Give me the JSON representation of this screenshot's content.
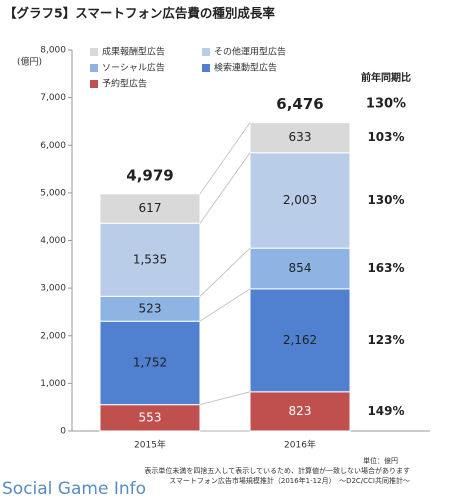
{
  "chart_data": {
    "type": "stacked_bar",
    "title": "【グラフ5】スマートフォン広告費の種別成長率",
    "y_unit": "(億円)",
    "categories": [
      "2015年",
      "2016年"
    ],
    "series": [
      {
        "name": "予約型広告",
        "color": "#c0504d",
        "label_color": "#ffffff",
        "values": [
          553,
          823
        ]
      },
      {
        "name": "検索連動型広告",
        "color": "#4f81d0",
        "label_color": "#222222",
        "values": [
          1752,
          2162
        ],
        "value_labels": [
          "1,752",
          "2,162"
        ]
      },
      {
        "name": "ソーシャル広告",
        "color": "#8eb4e3",
        "label_color": "#222222",
        "values": [
          523,
          854
        ]
      },
      {
        "name": "その他運用型広告",
        "color": "#b9cde8",
        "label_color": "#222222",
        "values": [
          1535,
          2003
        ],
        "value_labels": [
          "1,535",
          "2,003"
        ]
      },
      {
        "name": "成果報酬型広告",
        "color": "#d9d9d9",
        "label_color": "#222222",
        "values": [
          617,
          633
        ]
      }
    ],
    "legend_order": [
      4,
      3,
      2,
      1,
      0
    ],
    "totals": {
      "values": [
        4979,
        6476
      ],
      "value_labels": [
        "4,979",
        "6,476"
      ]
    },
    "yoy": {
      "title": "前年同期比",
      "total": {
        "value": 130,
        "label": "130%"
      },
      "series": [
        {
          "value": 149,
          "label": "149%"
        },
        {
          "value": 123,
          "label": "123%"
        },
        {
          "value": 163,
          "label": "163%"
        },
        {
          "value": 130,
          "label": "130%"
        },
        {
          "value": 103,
          "label": "103%"
        }
      ]
    },
    "ylim": [
      0,
      8000
    ],
    "yticks": [
      0,
      {
        "value": 1000,
        "label": "1,000"
      },
      {
        "value": 2000,
        "label": "2,000"
      },
      {
        "value": 3000,
        "label": "3,000"
      },
      {
        "value": 4000,
        "label": "4,000"
      },
      {
        "value": 5000,
        "label": "5,000"
      },
      {
        "value": 6000,
        "label": "6,000"
      },
      {
        "value": 7000,
        "label": "7,000"
      },
      {
        "value": 8000,
        "label": "8,000"
      }
    ],
    "notes": [
      "単位：億円",
      "表示単位未満を四捨五入して表示しているため、計算値が一致しない場合があります",
      "スマートフォン広告市場規模推計（2016年1-12月）　～D2C/CCI共同推計～"
    ],
    "watermark": "Social Game Info"
  }
}
